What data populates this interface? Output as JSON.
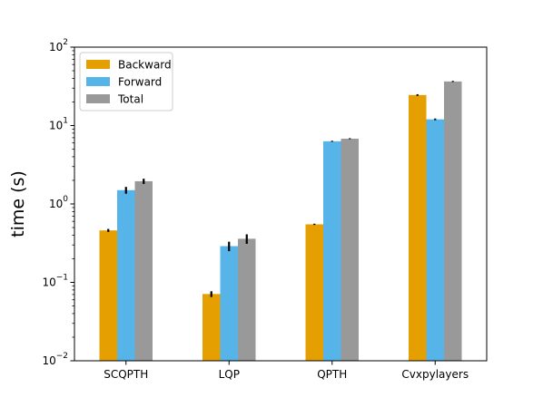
{
  "chart_data": {
    "type": "bar",
    "scale": "log",
    "ylim": [
      0.01,
      100
    ],
    "ylabel": "time (s)",
    "xlabel": "",
    "categories": [
      "SCQPTH",
      "LQP",
      "QPTH",
      "Cvxpylayers"
    ],
    "series": [
      {
        "name": "Backward",
        "color": "#E69F00",
        "values": [
          0.46,
          0.071,
          0.55,
          24.5
        ],
        "errors": [
          0.02,
          0.006,
          0.01,
          0.6
        ]
      },
      {
        "name": "Forward",
        "color": "#56B4E9",
        "values": [
          1.5,
          0.29,
          6.3,
          12.0
        ],
        "errors": [
          0.15,
          0.04,
          0.1,
          0.3
        ]
      },
      {
        "name": "Total",
        "color": "#999999",
        "values": [
          1.95,
          0.36,
          6.8,
          36.5
        ],
        "errors": [
          0.15,
          0.05,
          0.1,
          0.6
        ]
      }
    ],
    "yticks": [
      {
        "value": 0.01,
        "base": "10",
        "exp": "−2"
      },
      {
        "value": 0.1,
        "base": "10",
        "exp": "−1"
      },
      {
        "value": 1,
        "base": "10",
        "exp": "0"
      },
      {
        "value": 10,
        "base": "10",
        "exp": "1"
      },
      {
        "value": 100,
        "base": "10",
        "exp": "2"
      }
    ],
    "legend_position": "upper-left",
    "grid": false
  }
}
